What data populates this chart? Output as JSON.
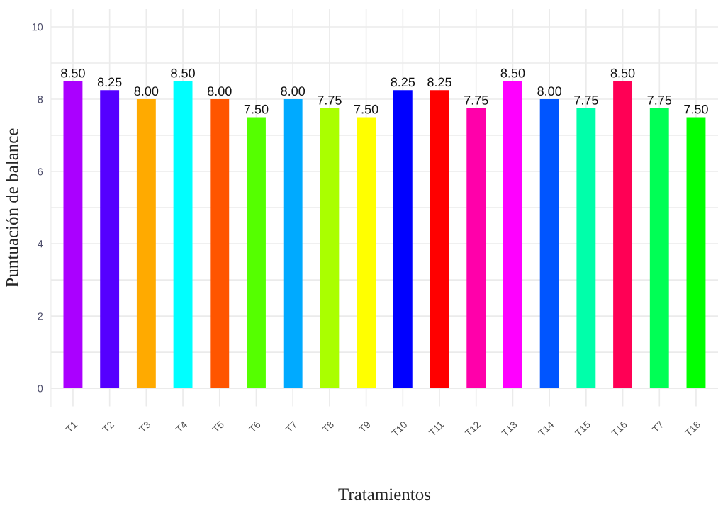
{
  "chart_data": {
    "type": "bar",
    "xlabel": "Tratamientos",
    "ylabel": "Puntuación de balance",
    "categories": [
      "T1",
      "T2",
      "T3",
      "T4",
      "T5",
      "T6",
      "T7",
      "T8",
      "T9",
      "T10",
      "T11",
      "T12",
      "T13",
      "T14",
      "T15",
      "T16",
      "T7",
      "T18"
    ],
    "values": [
      8.5,
      8.25,
      8.0,
      8.5,
      8.0,
      7.5,
      8.0,
      7.75,
      7.5,
      8.25,
      8.25,
      7.75,
      8.5,
      8.0,
      7.75,
      8.5,
      7.75,
      7.5
    ],
    "colors": [
      "#aa00ff",
      "#5500ff",
      "#ffaa00",
      "#00ffff",
      "#ff5500",
      "#55ff00",
      "#00aaff",
      "#aaff00",
      "#ffff00",
      "#0000ff",
      "#ff0000",
      "#ff00aa",
      "#ff00ff",
      "#0055ff",
      "#00ffaa",
      "#ff0055",
      "#00ff55",
      "#00ff00"
    ],
    "value_labels": [
      "8.50",
      "8.25",
      "8.00",
      "8.50",
      "8.00",
      "7.50",
      "8.00",
      "7.75",
      "7.50",
      "8.25",
      "8.25",
      "7.75",
      "8.50",
      "8.00",
      "7.75",
      "8.50",
      "7.75",
      "7.50"
    ],
    "ylim": [
      -0.5,
      10.5
    ],
    "yticks": [
      0,
      {
        "value": 1,
        "label": null
      },
      2,
      {
        "value": 3,
        "label": null
      },
      4,
      {
        "value": 5,
        "label": null
      },
      6,
      {
        "value": 7,
        "label": null
      },
      8,
      {
        "value": 9,
        "label": null
      },
      10
    ],
    "grid": true
  }
}
